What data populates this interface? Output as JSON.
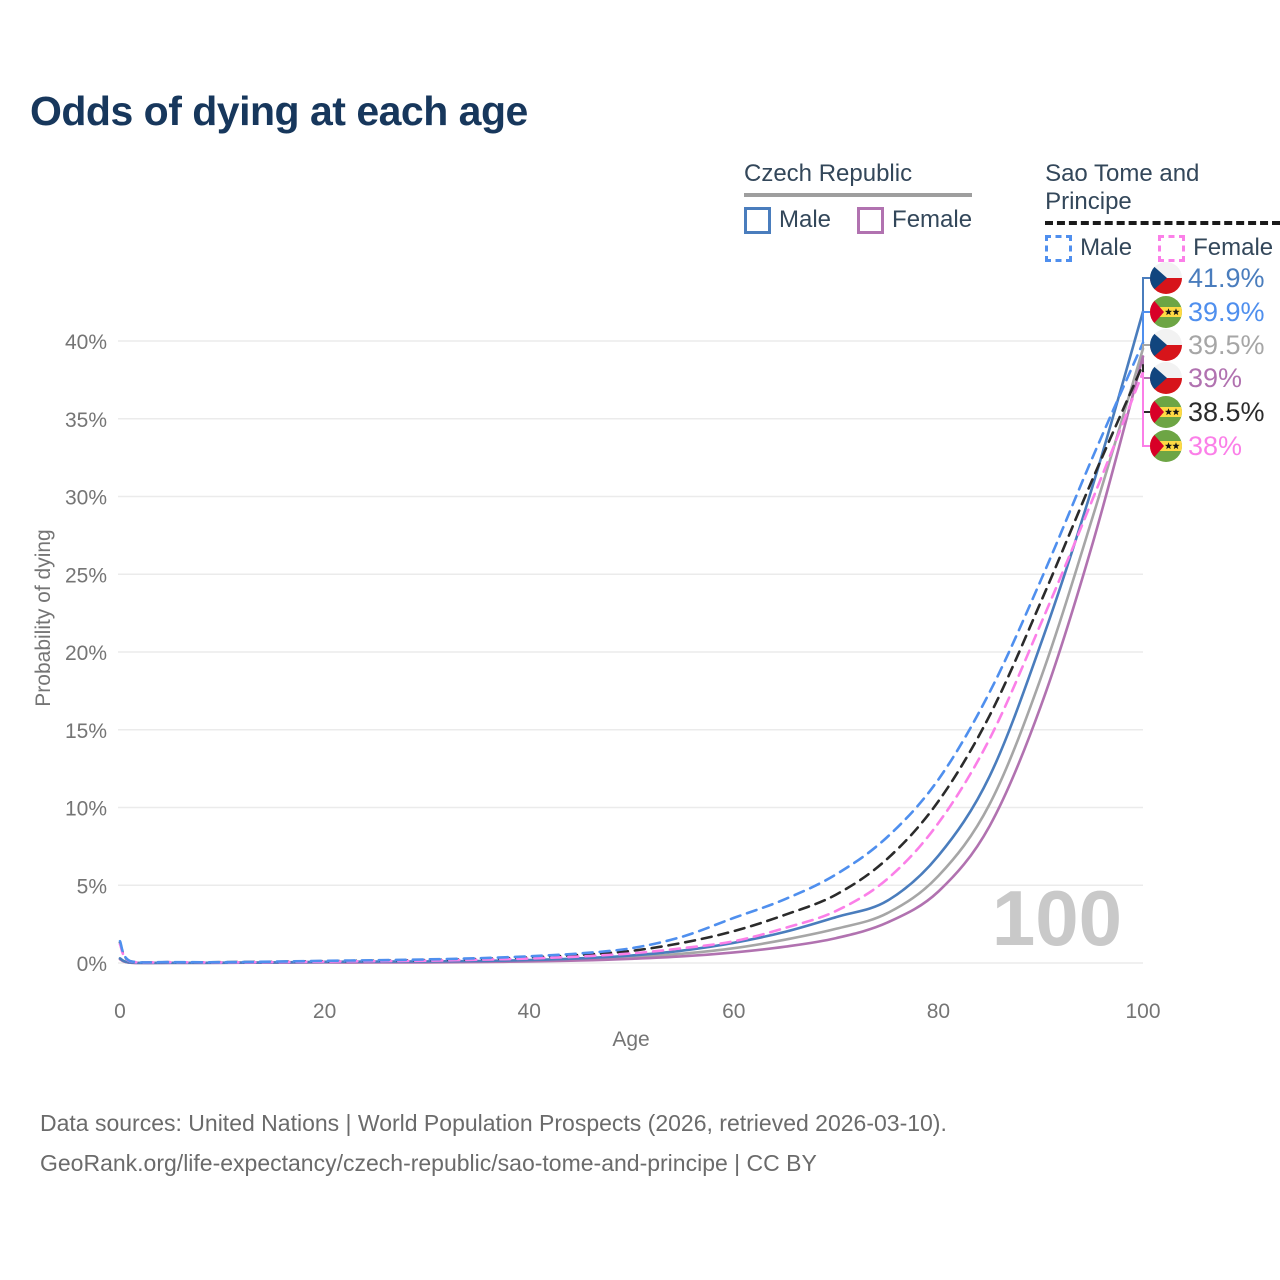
{
  "title": "Odds of dying at each age",
  "watermark_age": "100",
  "legend": {
    "groups": [
      {
        "label": "Czech Republic",
        "line_style": "solid",
        "line_color": "#9e9e9e",
        "items": [
          {
            "label": "Male",
            "color": "#4a7dbd",
            "style": "solid"
          },
          {
            "label": "Female",
            "color": "#b172b0",
            "style": "solid"
          }
        ]
      },
      {
        "label": "Sao Tome and Principe",
        "line_style": "dashed",
        "line_color": "#1a1a1a",
        "items": [
          {
            "label": "Male",
            "color": "#4f8fee",
            "style": "dashed"
          },
          {
            "label": "Female",
            "color": "#fb7fe8",
            "style": "dashed"
          }
        ]
      }
    ]
  },
  "footer": {
    "line1": "Data sources: United Nations | World Population Prospects (2026, retrieved 2026-03-10).",
    "line2": "GeoRank.org/life-expectancy/czech-republic/sao-tome-and-principe | CC BY"
  },
  "chart_data": {
    "type": "line",
    "title": "Odds of dying at each age",
    "xlabel": "Age",
    "ylabel": "Probability of dying",
    "xlim": [
      0,
      100
    ],
    "ylim_percent": [
      0,
      44
    ],
    "x_ticks": [
      0,
      20,
      40,
      60,
      80,
      100
    ],
    "y_ticks": [
      "0%",
      "5%",
      "10%",
      "15%",
      "20%",
      "25%",
      "30%",
      "35%",
      "40%"
    ],
    "y_tick_values": [
      0,
      5,
      10,
      15,
      20,
      25,
      30,
      35,
      40
    ],
    "grid": "horizontal",
    "legend_position": "top-right",
    "ages": [
      0,
      1,
      5,
      10,
      15,
      20,
      25,
      30,
      35,
      40,
      45,
      50,
      55,
      60,
      65,
      70,
      75,
      80,
      85,
      90,
      95,
      100
    ],
    "series": [
      {
        "name": "Czech Republic Total",
        "color": "#a6a6a6",
        "dash": false,
        "values": [
          0.27,
          0.02,
          0.01,
          0.01,
          0.03,
          0.05,
          0.06,
          0.07,
          0.09,
          0.14,
          0.23,
          0.37,
          0.6,
          0.95,
          1.5,
          2.2,
          3.2,
          5.6,
          10.2,
          18.3,
          28.5,
          39.5
        ]
      },
      {
        "name": "Czech Republic Female",
        "color": "#b172b0",
        "dash": false,
        "values": [
          0.24,
          0.02,
          0.01,
          0.01,
          0.02,
          0.03,
          0.03,
          0.04,
          0.06,
          0.1,
          0.16,
          0.27,
          0.43,
          0.68,
          1.05,
          1.6,
          2.6,
          4.6,
          8.8,
          16.5,
          26.8,
          39.0
        ]
      },
      {
        "name": "Czech Republic Male",
        "color": "#4a7dbd",
        "dash": false,
        "values": [
          0.3,
          0.03,
          0.01,
          0.02,
          0.04,
          0.08,
          0.09,
          0.1,
          0.13,
          0.19,
          0.3,
          0.48,
          0.8,
          1.3,
          2.0,
          2.95,
          4.0,
          6.9,
          12.0,
          20.5,
          30.5,
          41.9
        ]
      },
      {
        "name": "Sao Tome and Principe Total",
        "color": "#2b2b2b",
        "dash": true,
        "values": [
          1.3,
          0.11,
          0.05,
          0.05,
          0.08,
          0.12,
          0.15,
          0.19,
          0.26,
          0.36,
          0.52,
          0.78,
          1.3,
          2.05,
          3.1,
          4.4,
          6.7,
          10.4,
          15.9,
          23.2,
          31.0,
          38.5
        ]
      },
      {
        "name": "Sao Tome and Principe Female",
        "color": "#fb7fe8",
        "dash": true,
        "values": [
          1.2,
          0.1,
          0.05,
          0.04,
          0.06,
          0.09,
          0.12,
          0.15,
          0.21,
          0.29,
          0.42,
          0.62,
          0.95,
          1.4,
          2.25,
          3.35,
          5.4,
          9.0,
          14.4,
          21.8,
          29.7,
          38.0
        ]
      },
      {
        "name": "Sao Tome and Principe Male",
        "color": "#4f8fee",
        "dash": true,
        "values": [
          1.4,
          0.12,
          0.06,
          0.05,
          0.09,
          0.14,
          0.18,
          0.23,
          0.31,
          0.43,
          0.62,
          0.95,
          1.7,
          2.9,
          4.1,
          5.7,
          8.1,
          11.8,
          17.4,
          24.6,
          32.4,
          39.9
        ]
      }
    ],
    "end_labels": [
      {
        "text": "41.9%",
        "value": 41.9,
        "flag": "czech-republic",
        "color": "#4a7dbd",
        "series": "Czech Republic Male"
      },
      {
        "text": "39.9%",
        "value": 39.9,
        "flag": "sao-tome-and-principe",
        "color": "#4f8fee",
        "series": "Sao Tome and Principe Male"
      },
      {
        "text": "39.5%",
        "value": 39.5,
        "flag": "czech-republic",
        "color": "#a6a6a6",
        "series": "Czech Republic Total"
      },
      {
        "text": "39%",
        "value": 39.0,
        "flag": "czech-republic",
        "color": "#b172b0",
        "series": "Czech Republic Female"
      },
      {
        "text": "38.5%",
        "value": 38.5,
        "flag": "sao-tome-and-principe",
        "color": "#2b2b2b",
        "series": "Sao Tome and Principe Total"
      },
      {
        "text": "38%",
        "value": 38.0,
        "flag": "sao-tome-and-principe",
        "color": "#fb7fe8",
        "series": "Sao Tome and Principe Female"
      }
    ]
  }
}
